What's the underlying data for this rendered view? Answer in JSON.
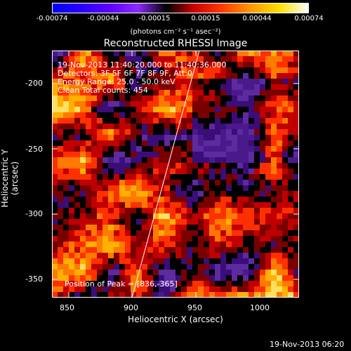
{
  "colorbar": {
    "colors": [
      "#0000ff",
      "#2a00ff",
      "#5b00ff",
      "#8d2aff",
      "#000000",
      "#d10000",
      "#ff3d00",
      "#ff9a00",
      "#ffe000",
      "#ffffff"
    ],
    "ticks": [
      "-0.00074",
      "-0.00044",
      "-0.00015",
      "0.00015",
      "0.00044",
      "0.00074"
    ],
    "units": "(photons cm⁻² s⁻¹ asec⁻²)"
  },
  "title": "Reconstructed RHESSI Image",
  "info": {
    "time_range": "19-Nov-2013 11:40:20.000 to 11:40:36.000",
    "detectors": "Detectors: 3F 5F 6F 7F 8F 9F, Att:0",
    "energy": "Energy Range: 25.0 - 50.0 keV",
    "clean": "Clean     Total counts: 454",
    "peak": "Position of Peak = [836,-365]"
  },
  "axes": {
    "xlabel": "Heliocentric X (arcsec)",
    "ylabel": "Heliocentric Y (arcsec)",
    "xticks": [
      "850",
      "900",
      "950",
      "1000"
    ],
    "yticks": [
      "-200",
      "-250",
      "-300",
      "-350"
    ]
  },
  "footer": {
    "timestamp": "19-Nov-2013 06:20"
  }
}
